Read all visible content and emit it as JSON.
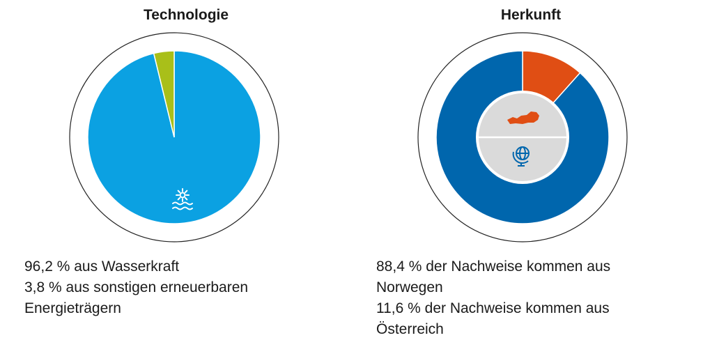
{
  "colors": {
    "hydro": "#0ba1e2",
    "other_renewables": "#a9bf19",
    "norway": "#0066ad",
    "austria": "#e04e14",
    "inner_disc": "#dadada",
    "ring_stroke": "#222222"
  },
  "chart_data": [
    {
      "type": "pie",
      "title": "Technologie",
      "slices": [
        {
          "label": "aus Wasserkraft",
          "value": 96.2,
          "color": "#0ba1e2",
          "icon": "hydropower-icon"
        },
        {
          "label": "aus sonstigen erneuerbaren Energieträgern",
          "value": 3.8,
          "color": "#a9bf19"
        }
      ],
      "legend_lines": [
        "96,2 % aus Wasserkraft",
        "3,8 % aus sonstigen erneuerbaren Energieträgern"
      ]
    },
    {
      "type": "pie",
      "title": "Herkunft",
      "slices": [
        {
          "label": "Norwegen",
          "value": 88.4,
          "color": "#0066ad",
          "icon": "globe-icon"
        },
        {
          "label": "Österreich",
          "value": 11.6,
          "color": "#e04e14",
          "icon": "austria-map-icon"
        }
      ],
      "legend_lines": [
        "88,4 % der Nachweise kommen aus Norwegen",
        "11,6 % der Nachweise kommen aus Österreich"
      ]
    }
  ]
}
